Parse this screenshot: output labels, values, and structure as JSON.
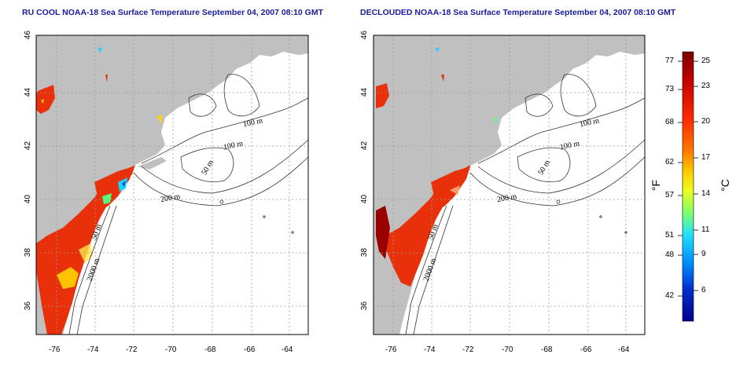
{
  "left_panel": {
    "title": "RU COOL NOAA-18 Sea Surface Temperature September 04, 2007 08:10 GMT"
  },
  "right_panel": {
    "title": "DECLOUDED NOAA-18 Sea Surface Temperature September 04, 2007 08:10 GMT"
  },
  "axes": {
    "lat_ticks": [
      "46",
      "44",
      "42",
      "40",
      "38",
      "36"
    ],
    "lon_ticks": [
      "-76",
      "-74",
      "-72",
      "-70",
      "-68",
      "-66",
      "-64"
    ]
  },
  "contours": {
    "labels_top": [
      "100 m",
      "100 m",
      "50 m",
      "200 m"
    ],
    "labels_bottom": [
      "50 m",
      "2000 m"
    ]
  },
  "colorbar": {
    "unit_f": "°F",
    "unit_c": "°C",
    "f_ticks": [
      "77",
      "73",
      "68",
      "62",
      "57",
      "51",
      "48",
      "42"
    ],
    "c_ticks": [
      "25",
      "23",
      "20",
      "17",
      "14",
      "11",
      "9",
      "6"
    ],
    "colors": [
      "#7a0000",
      "#c00000",
      "#ff2a00",
      "#ff7a00",
      "#ffd000",
      "#e8ff20",
      "#7cff70",
      "#20e0ff",
      "#0090ff",
      "#0030d0",
      "#00008a"
    ]
  },
  "colors": {
    "land": "#c0c0c0",
    "ocean": "#ffffff",
    "sst_warm": "#e8300a",
    "title": "#1a1aa0"
  }
}
